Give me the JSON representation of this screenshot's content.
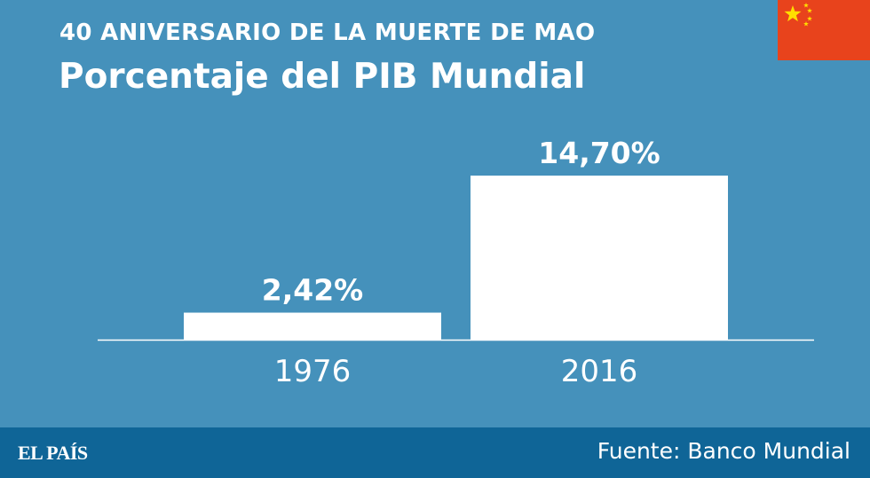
{
  "header": {
    "kicker": "40 ANIVERSARIO DE LA MUERTE DE MAO",
    "title": "Porcentaje del PIB Mundial"
  },
  "flag": {
    "icon": "china-flag-icon",
    "background": "#e8431c",
    "star_color": "#ffde00"
  },
  "chart_data": {
    "type": "bar",
    "title": "Porcentaje del PIB Mundial",
    "categories": [
      "1976",
      "2016"
    ],
    "values": [
      2.42,
      14.7
    ],
    "data_labels": [
      "2,42%",
      "14,70%"
    ],
    "ylim": [
      0,
      14.7
    ],
    "xlabel": "",
    "ylabel": "",
    "grid": false,
    "bar_color": "#ffffff"
  },
  "footer": {
    "logo": "EL PAÍS",
    "source": "Fuente: Banco Mundial"
  },
  "colors": {
    "background": "#4591bb",
    "footer": "#0f6597",
    "text": "#ffffff"
  }
}
